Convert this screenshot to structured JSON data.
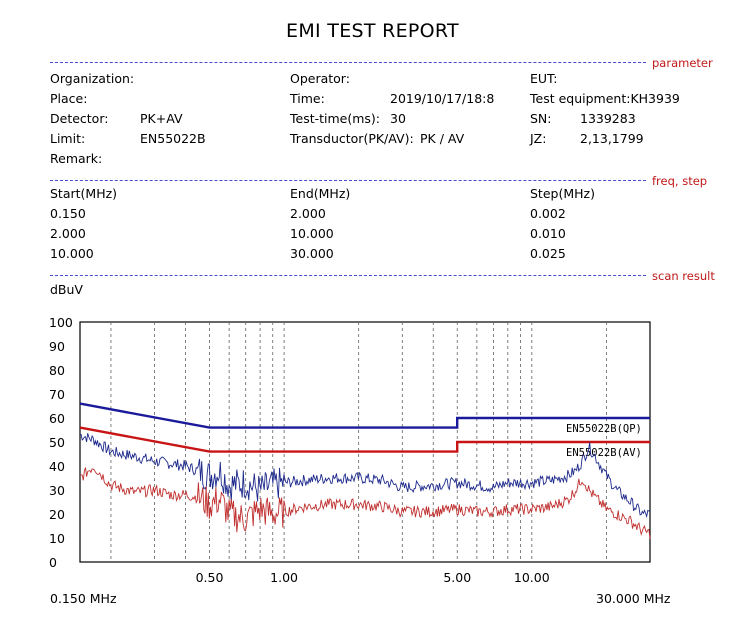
{
  "title": "EMI TEST REPORT",
  "sections": {
    "parameter": "parameter",
    "freq_step": "freq, step",
    "scan_result": "scan result"
  },
  "params": {
    "organization_label": "Organization:",
    "operator_label": "Operator:",
    "eut_label": "EUT:",
    "place_label": "Place:",
    "time_label": "Time:",
    "time_value": "2019/10/17/18:8",
    "test_equipment": "Test equipment:KH3939",
    "detector_label": "Detector:",
    "detector_value": "PK+AV",
    "test_time_label": "Test-time(ms):",
    "test_time_value": "30",
    "sn_label": "SN:",
    "sn_value": "1339283",
    "limit_label": "Limit:",
    "limit_value": "EN55022B",
    "transducer_label": "Transductor(PK/AV):",
    "transducer_value": "PK  /  AV",
    "jz_label": "JZ:",
    "jz_value": "2,13,1799",
    "remark_label": "Remark:"
  },
  "freq_table": {
    "headers": [
      "Start(MHz)",
      "End(MHz)",
      "Step(MHz)"
    ],
    "rows": [
      [
        "0.150",
        "2.000",
        "0.002"
      ],
      [
        "2.000",
        "10.000",
        "0.010"
      ],
      [
        "10.000",
        "30.000",
        "0.025"
      ]
    ]
  },
  "colors": {
    "qp_limit": "#1a1a9a",
    "av_limit": "#c81414",
    "pk_trace": "#1e2a8c",
    "av_trace": "#c03030",
    "tag": "#c01818"
  },
  "chart_data": {
    "type": "line",
    "title": "",
    "ylabel": "dBuV",
    "xlabel": "",
    "x_scale": "log",
    "xlim": [
      0.15,
      30
    ],
    "ylim": [
      0,
      100
    ],
    "x_min_label": "0.150 MHz",
    "x_max_label": "30.000 MHz",
    "yticks": [
      "100",
      "90",
      "80",
      "70",
      "60",
      "50",
      "40",
      "30",
      "20",
      "10",
      "0"
    ],
    "xtick_labels": [
      {
        "x": 0.5,
        "label": "0.50"
      },
      {
        "x": 1.0,
        "label": "1.00"
      },
      {
        "x": 5.0,
        "label": "5.00"
      },
      {
        "x": 10.0,
        "label": "10.00"
      }
    ],
    "grid": true,
    "series": [
      {
        "name": "EN55022B(QP)",
        "type": "limit",
        "x": [
          0.15,
          0.5,
          5.0,
          5.0,
          30.0
        ],
        "y": [
          66,
          56,
          56,
          60,
          60
        ]
      },
      {
        "name": "EN55022B(AV)",
        "type": "limit",
        "x": [
          0.15,
          0.5,
          5.0,
          5.0,
          30.0
        ],
        "y": [
          56,
          46,
          46,
          50,
          50
        ]
      },
      {
        "type": "measurement-pk",
        "x": [
          0.15,
          0.17,
          0.2,
          0.25,
          0.3,
          0.35,
          0.4,
          0.45,
          0.5,
          0.55,
          0.6,
          0.7,
          0.8,
          0.9,
          1.0,
          1.2,
          1.5,
          2.0,
          2.5,
          3.0,
          4.0,
          5.0,
          6.0,
          7.0,
          8.0,
          10.0,
          12.0,
          14.0,
          15.0,
          16.0,
          17.0,
          18.0,
          20.0,
          22.0,
          25.0,
          28.0,
          30.0
        ],
        "y": [
          53,
          51,
          46,
          44,
          42,
          41,
          40,
          38,
          36,
          38,
          32,
          33,
          30,
          32,
          33,
          34,
          35,
          35,
          34,
          31,
          32,
          33,
          32,
          31,
          33,
          33,
          34,
          36,
          38,
          42,
          48,
          44,
          36,
          30,
          25,
          20,
          20
        ]
      },
      {
        "type": "measurement-av",
        "x": [
          0.15,
          0.17,
          0.2,
          0.25,
          0.3,
          0.35,
          0.4,
          0.45,
          0.5,
          0.55,
          0.6,
          0.7,
          0.8,
          0.9,
          1.0,
          1.2,
          1.5,
          2.0,
          2.5,
          3.0,
          4.0,
          5.0,
          6.0,
          7.0,
          8.0,
          10.0,
          12.0,
          14.0,
          15.0,
          16.0,
          17.0,
          18.0,
          20.0,
          22.0,
          25.0,
          28.0,
          30.0
        ],
        "y": [
          35,
          40,
          32,
          29,
          30,
          28,
          28,
          27,
          24,
          26,
          20,
          18,
          22,
          20,
          21,
          23,
          24,
          24,
          23,
          21,
          21,
          22,
          21,
          21,
          22,
          22,
          23,
          26,
          30,
          35,
          30,
          27,
          22,
          20,
          17,
          13,
          12
        ]
      }
    ]
  }
}
